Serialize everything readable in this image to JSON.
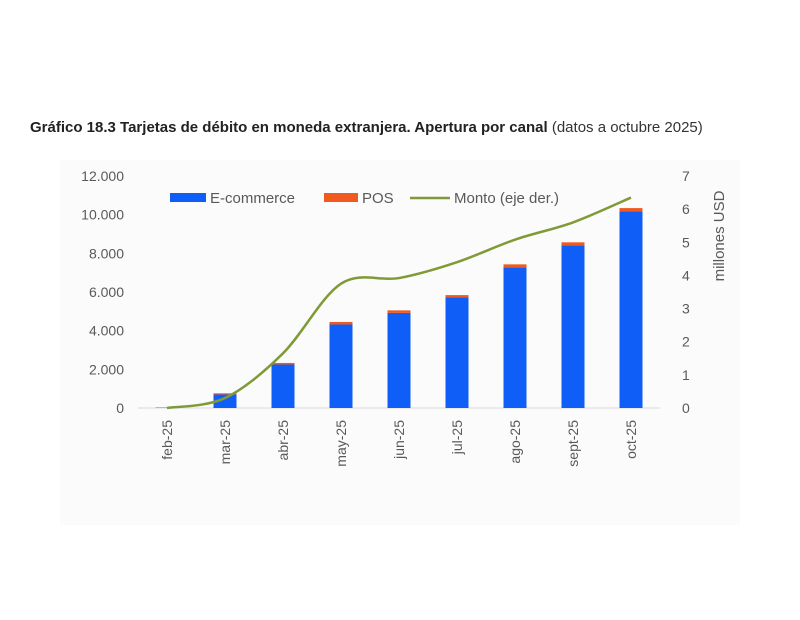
{
  "chart_data": {
    "type": "bar",
    "title_bold": "Gráfico 18.3 Tarjetas de débito en moneda extranjera. Apertura por canal",
    "title_normal": "(datos a octubre 2025)",
    "categories": [
      "feb-25",
      "mar-25",
      "abr-25",
      "may-25",
      "jun-25",
      "jul-25",
      "ago-25",
      "sept-25",
      "oct-25"
    ],
    "series": [
      {
        "name": "E-commerce",
        "kind": "bar",
        "axis": "left",
        "color": "#0f5ef7",
        "values": [
          20,
          700,
          2250,
          4320,
          4920,
          5720,
          7280,
          8420,
          10180
        ]
      },
      {
        "name": "POS",
        "kind": "bar",
        "axis": "left",
        "color": "#f05a1e",
        "values": [
          5,
          60,
          80,
          130,
          130,
          120,
          150,
          150,
          160
        ]
      },
      {
        "name": "Monto (eje der.)",
        "kind": "line",
        "axis": "right",
        "color": "#7f9a37",
        "values": [
          0.0,
          0.3,
          1.65,
          3.75,
          3.92,
          4.4,
          5.08,
          5.6,
          6.35
        ]
      }
    ],
    "y_left": {
      "min": 0,
      "max": 12000,
      "ticks": [
        "0",
        "2.000",
        "4.000",
        "6.000",
        "8.000",
        "10.000",
        "12.000"
      ]
    },
    "y_right": {
      "min": 0,
      "max": 7,
      "ticks": [
        "0",
        "1",
        "2",
        "3",
        "4",
        "5",
        "6",
        "7"
      ],
      "label": "millones USD"
    },
    "legend_position": "top",
    "grid": false
  }
}
